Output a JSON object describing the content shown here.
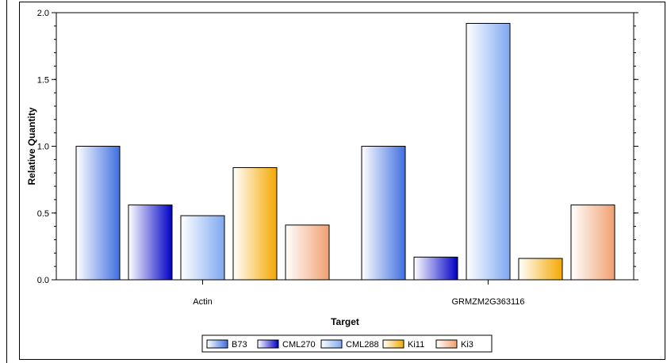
{
  "chart_data": {
    "type": "bar",
    "title": "",
    "xlabel": "Target",
    "ylabel": "Relative Quantity",
    "categories": [
      "Actin",
      "GRMZM2G363116"
    ],
    "ylim": [
      0,
      2.0
    ],
    "yticks": [
      0.0,
      0.5,
      1.0,
      1.5,
      2.0
    ],
    "ytick_labels": [
      "0.0",
      "0.5",
      "1.0",
      "1.5",
      "2.0"
    ],
    "legend_position": "bottom",
    "series": [
      {
        "name": "B73",
        "values": [
          1.0,
          1.0
        ],
        "color_from": "#ffffff",
        "color_to": "#3f6fe0"
      },
      {
        "name": "CML270",
        "values": [
          0.56,
          0.17
        ],
        "color_from": "#ffffff",
        "color_to": "#0000c8"
      },
      {
        "name": "CML288",
        "values": [
          0.48,
          1.92
        ],
        "color_from": "#ffffff",
        "color_to": "#7fa8f0"
      },
      {
        "name": "Ki11",
        "values": [
          0.84,
          0.16
        ],
        "color_from": "#ffffff",
        "color_to": "#f5a800"
      },
      {
        "name": "Ki3",
        "values": [
          0.41,
          0.56
        ],
        "color_from": "#ffffff",
        "color_to": "#f0a070"
      }
    ]
  }
}
